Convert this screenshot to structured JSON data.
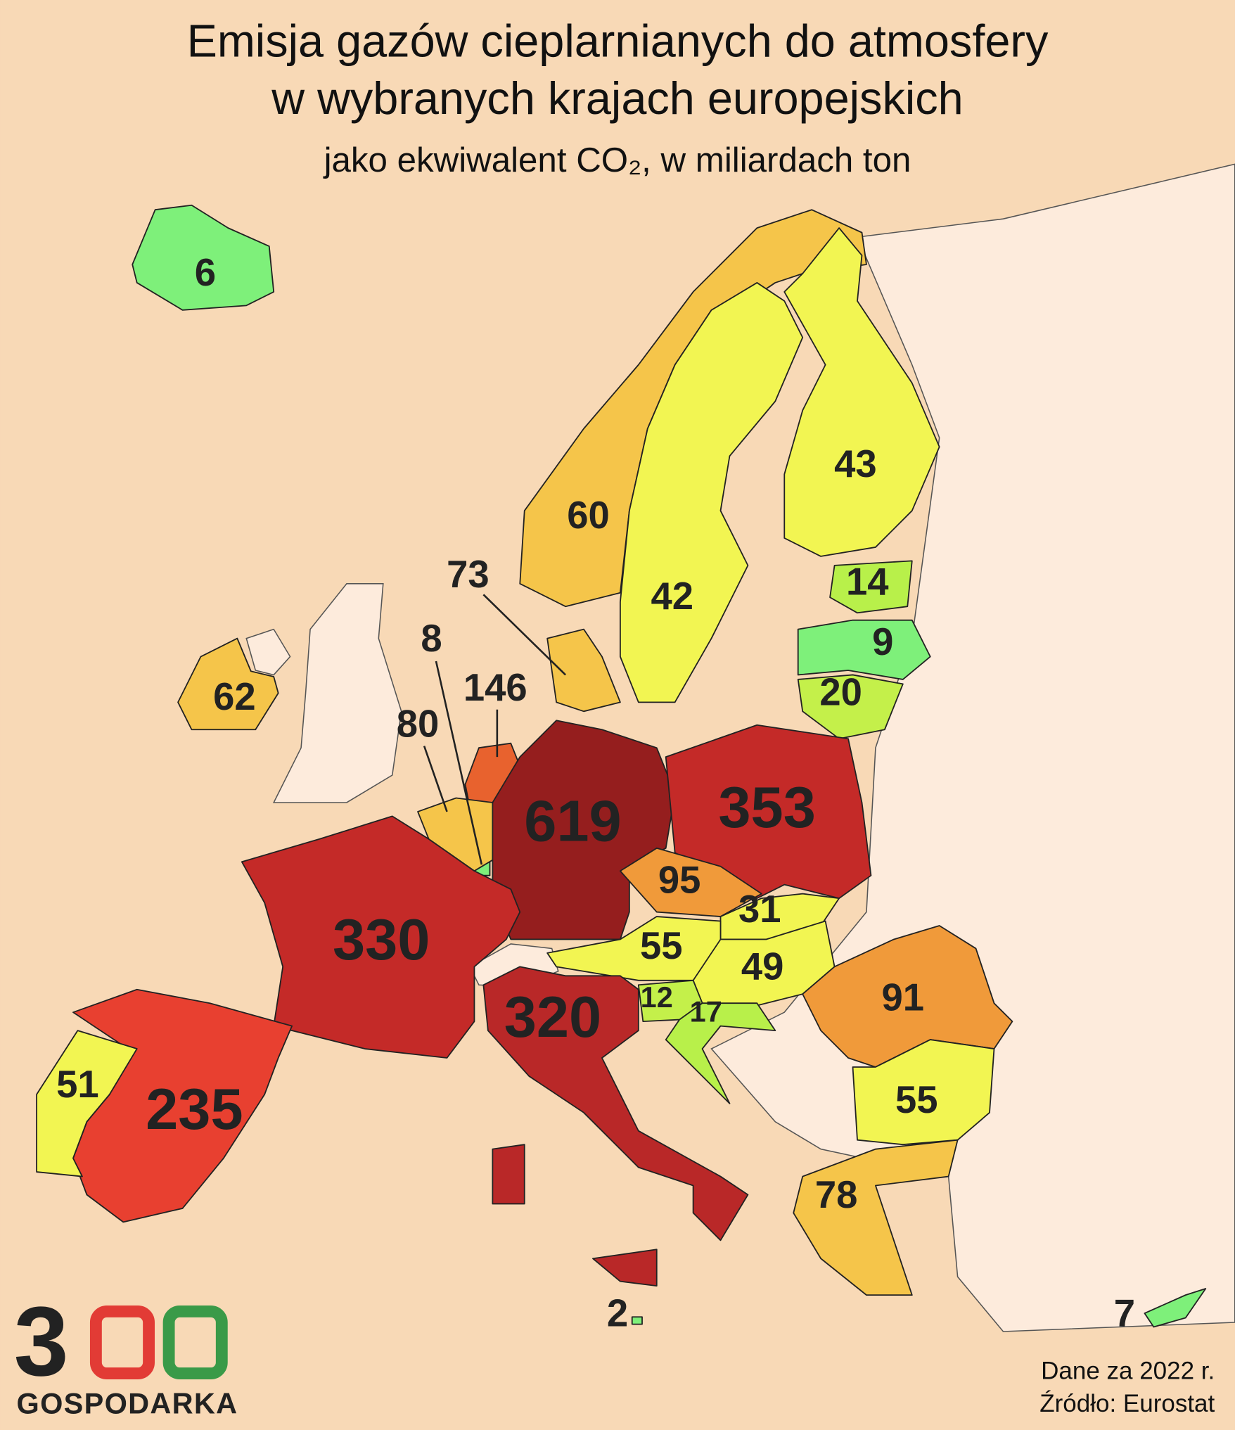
{
  "header": {
    "title": [
      "Emisja gazów cieplarnianych do atmosfery",
      "w wybranych krajach europejskich"
    ],
    "subtitle": "jako ekwiwalent CO₂, w miliardach ton"
  },
  "map": {
    "regions": [
      {
        "value": 6,
        "color": "#7ef07a"
      },
      {
        "value": 60,
        "color": "#f5c54a"
      },
      {
        "value": 42,
        "color": "#f2f552"
      },
      {
        "value": 43,
        "color": "#f2f552"
      },
      {
        "value": 14,
        "color": "#b8f04a"
      },
      {
        "value": 9,
        "color": "#7ef07a"
      },
      {
        "value": 20,
        "color": "#c4f04a"
      },
      {
        "value": 73,
        "color": "#f5c54a"
      },
      {
        "value": 8,
        "color": "#7ef07a"
      },
      {
        "value": 146,
        "color": "#e8622e"
      },
      {
        "value": 80,
        "color": "#f5c54a"
      },
      {
        "value": 62,
        "color": "#f5c54a"
      },
      {
        "value": 619,
        "color": "#951e1e"
      },
      {
        "value": 353,
        "color": "#c42a28"
      },
      {
        "value": 95,
        "color": "#f09a3a"
      },
      {
        "value": 31,
        "color": "#f2f552"
      },
      {
        "value": 55,
        "color": "#f2f552"
      },
      {
        "value": 49,
        "color": "#f2f552"
      },
      {
        "value": 91,
        "color": "#f09a3a"
      },
      {
        "value": 330,
        "color": "#c42a28"
      },
      {
        "value": 320,
        "color": "#b92828"
      },
      {
        "value": 12,
        "color": "#c4f04a"
      },
      {
        "value": 17,
        "color": "#b8f04a"
      },
      {
        "value": 55,
        "color": "#f2f552"
      },
      {
        "value": 78,
        "color": "#f5c54a"
      },
      {
        "value": 235,
        "color": "#e84030"
      },
      {
        "value": 51,
        "color": "#f2f552"
      },
      {
        "value": 2,
        "color": "#7ef07a"
      },
      {
        "value": 7,
        "color": "#7ef07a"
      }
    ]
  },
  "footer": {
    "note": "Dane za 2022 r.",
    "source": "Źródło: Eurostat"
  },
  "logo": {
    "digits": [
      "3",
      "0",
      "0"
    ],
    "name": "GOSPODARKA"
  }
}
